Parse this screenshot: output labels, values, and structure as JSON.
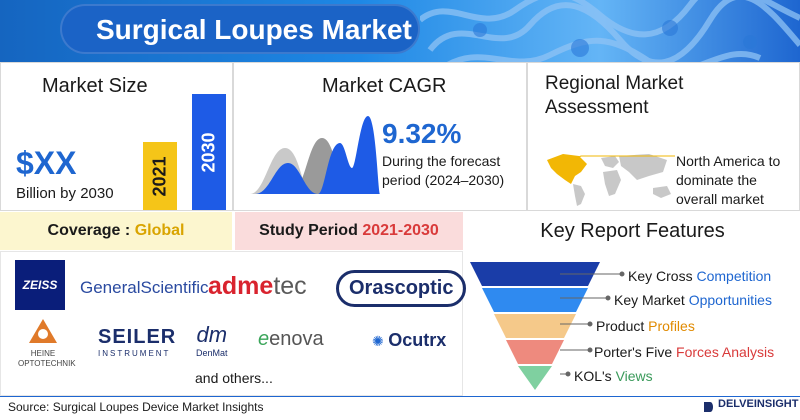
{
  "banner": {
    "title": "Surgical Loupes Market"
  },
  "market_size": {
    "heading": "Market Size",
    "value": "$XX",
    "subtext": "Billion by 2030",
    "bars": [
      {
        "label": "2021",
        "color": "#f5c518"
      },
      {
        "label": "2030",
        "color": "#1e5be6"
      }
    ]
  },
  "cagr": {
    "heading": "Market CAGR",
    "value": "9.32%",
    "description": "During the forecast period (2024–2030)"
  },
  "regional": {
    "heading": "Regional Market Assessment",
    "note": "North America to dominate the overall market"
  },
  "coverage": {
    "label": "Coverage :",
    "value": "Global"
  },
  "study": {
    "label": "Study Period",
    "value": "2021-2030"
  },
  "key_features": {
    "heading": "Key Report Features",
    "items": [
      {
        "prefix": "Key Cross",
        "highlight": "Competition",
        "color": "#1e66d0"
      },
      {
        "prefix": "Key Market",
        "highlight": "Opportunities",
        "color": "#1e66d0"
      },
      {
        "prefix": "Product",
        "highlight": "Profiles",
        "color": "#e08a00"
      },
      {
        "prefix": "Porter's Five",
        "highlight": "Forces Analysis",
        "color": "#d93a3a"
      },
      {
        "prefix": "KOL's",
        "highlight": "Views",
        "color": "#3a9a5a"
      }
    ]
  },
  "companies": {
    "zeiss": "ZEISS",
    "general_scientific": "GeneralScientific",
    "admetec_a": "adme",
    "admetec_b": "tec",
    "orascoptic": "Orascoptic",
    "heine": "HEINE OPTOTECHNIK",
    "seiler": "SEILER",
    "seiler_sub": "INSTRUMENT",
    "denmat": "DenMat",
    "enova": "enova",
    "ocutrx": "Ocutrx",
    "others": "and others..."
  },
  "footer": {
    "source": "Source: Surgical Loupes Device Market Insights",
    "brand": "DELVEINSIGHT"
  }
}
